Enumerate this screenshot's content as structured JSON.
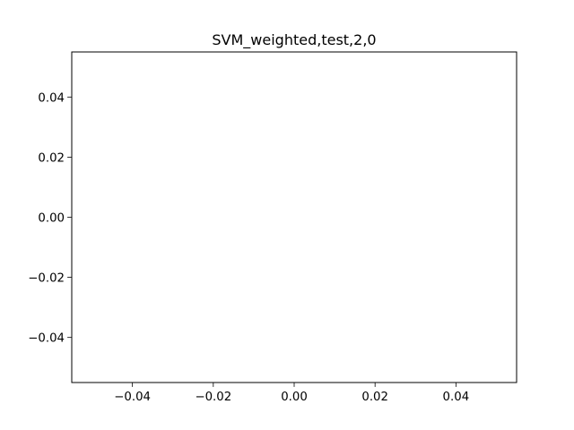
{
  "chart_data": {
    "type": "line",
    "title": "SVM_weighted,test,2,0",
    "xlabel": "",
    "ylabel": "",
    "xlim": [
      -0.055,
      0.055
    ],
    "ylim": [
      -0.055,
      0.055
    ],
    "x_ticks": [
      -0.04,
      -0.02,
      0.0,
      0.02,
      0.04
    ],
    "x_tick_labels": [
      "−0.04",
      "−0.02",
      "0.00",
      "0.02",
      "0.04"
    ],
    "y_ticks": [
      -0.04,
      -0.02,
      0.0,
      0.02,
      0.04
    ],
    "y_tick_labels": [
      "−0.04",
      "−0.02",
      "0.00",
      "0.02",
      "0.04"
    ],
    "series": [],
    "grid": false,
    "legend": false
  }
}
